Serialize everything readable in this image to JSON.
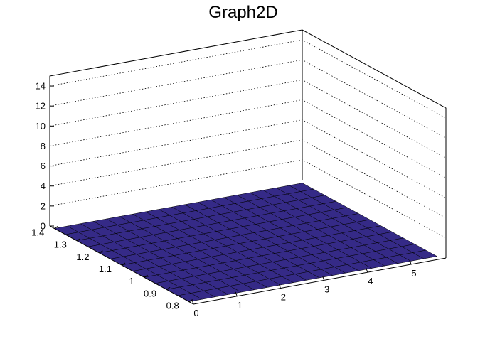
{
  "chart_data": {
    "type": "surface",
    "title": "Graph2D",
    "xlabel": "",
    "ylabel": "",
    "zlabel": "",
    "x_ticks": [
      "0",
      "1",
      "2",
      "3",
      "4",
      "5"
    ],
    "y_ticks": [
      "0.8",
      "0.9",
      "1",
      "1.1",
      "1.2",
      "1.3",
      "1.4"
    ],
    "z_ticks": [
      "0",
      "2",
      "4",
      "6",
      "8",
      "10",
      "12",
      "14"
    ],
    "xlim": [
      0,
      5.8
    ],
    "ylim": [
      0.78,
      1.42
    ],
    "zlim": [
      0,
      15
    ],
    "grid": true,
    "colormap": [
      "#352a87",
      "#0363e1",
      "#1485d4",
      "#06a7c6",
      "#38b99e",
      "#92bf73",
      "#d9ba56",
      "#fcce2e",
      "#f9fb0e"
    ],
    "grid_x": [
      0,
      0.3,
      0.6,
      0.9,
      1.2,
      1.5,
      1.8,
      2.1,
      2.4,
      2.7,
      3.0,
      3.3,
      3.6,
      3.9,
      4.2,
      4.5,
      4.8,
      5.1,
      5.4,
      5.7
    ],
    "grid_y": [
      0.8,
      0.85,
      0.9,
      0.95,
      1.0,
      1.05,
      1.1,
      1.15,
      1.2,
      1.25,
      1.3,
      1.35,
      1.4
    ],
    "z": [
      [
        0,
        0,
        0,
        0,
        0,
        0,
        0,
        0,
        0,
        0,
        0,
        0,
        0,
        0,
        0,
        0,
        0,
        0,
        0,
        0
      ],
      [
        0,
        0,
        0,
        0,
        0,
        0,
        0,
        0,
        0,
        0,
        0,
        0,
        0,
        0,
        0,
        0,
        0,
        0,
        0,
        0
      ],
      [
        0,
        0,
        0,
        0,
        0,
        0,
        0,
        0,
        0,
        0,
        0,
        0,
        0,
        0,
        0,
        0,
        0,
        0,
        0,
        0
      ],
      [
        0,
        0,
        0,
        0,
        0,
        0,
        0,
        0,
        0,
        0,
        0,
        0,
        0,
        0,
        0,
        0,
        0,
        0,
        0,
        0
      ],
      [
        0,
        0,
        0,
        0,
        0,
        0,
        0,
        0,
        0,
        0,
        0,
        0,
        0,
        0,
        0,
        0,
        0,
        0,
        0,
        0
      ],
      [
        0,
        0,
        0,
        0,
        0,
        0,
        0,
        0,
        0,
        0,
        0,
        0,
        0,
        0,
        0,
        0,
        0,
        0,
        0,
        0
      ],
      [
        0,
        0,
        0,
        0,
        0,
        0,
        0,
        0,
        0,
        0,
        0,
        0,
        0,
        0,
        0,
        0,
        0,
        0,
        0,
        0
      ],
      [
        0,
        0,
        0,
        0,
        0,
        0,
        0,
        0,
        0,
        0,
        0,
        0,
        0,
        0,
        0,
        0,
        0,
        0,
        0,
        0
      ],
      [
        0,
        0,
        0,
        0,
        0,
        0,
        0,
        0,
        0,
        0,
        0,
        0,
        0,
        0,
        0,
        0,
        0,
        0,
        0,
        0
      ],
      [
        0,
        0,
        0,
        0,
        0,
        0,
        0,
        0,
        0,
        0,
        0,
        0,
        0,
        0,
        0,
        0,
        0,
        0,
        0,
        0
      ],
      [
        0,
        0,
        0,
        0,
        0,
        0,
        0,
        0,
        0,
        0,
        0,
        0,
        0,
        0,
        0,
        0,
        0,
        0,
        0,
        0
      ],
      [
        0,
        0,
        0,
        0,
        0,
        0,
        0,
        0,
        0,
        0,
        0,
        0,
        0,
        0,
        0,
        0,
        0,
        0,
        0,
        0
      ],
      [
        0,
        0,
        0,
        0,
        0,
        0,
        0,
        0,
        0,
        0,
        0,
        0,
        0,
        0,
        0,
        0,
        0,
        0,
        0,
        0
      ]
    ]
  }
}
